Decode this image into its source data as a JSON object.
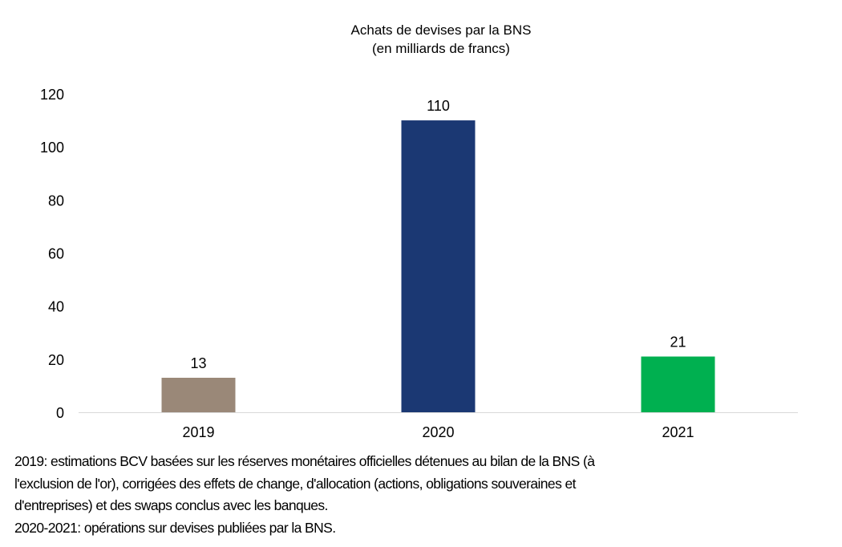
{
  "chart_data": {
    "type": "bar",
    "title": "Achats de devises par la BNS",
    "subtitle": "(en milliards de francs)",
    "categories": [
      "2019",
      "2020",
      "2021"
    ],
    "values": [
      13,
      110,
      21
    ],
    "data_labels": [
      "13",
      "110",
      "21"
    ],
    "colors": [
      "#9a8878",
      "#1b3873",
      "#00b050"
    ],
    "xlabel": "",
    "ylabel": "",
    "ylim": [
      0,
      120
    ],
    "yticks": [
      0,
      20,
      40,
      60,
      80,
      100,
      120
    ],
    "grid": false,
    "legend": "none"
  },
  "notes": [
    "2019: estimations BCV basées sur les réserves monétaires officielles détenues au bilan de la BNS (à",
    "l'exclusion de l'or), corrigées des effets de change, d'allocation (actions, obligations souveraines et",
    "d'entreprises) et des swaps conclus avec les banques.",
    "2020-2021: opérations sur devises publiées par la BNS."
  ]
}
